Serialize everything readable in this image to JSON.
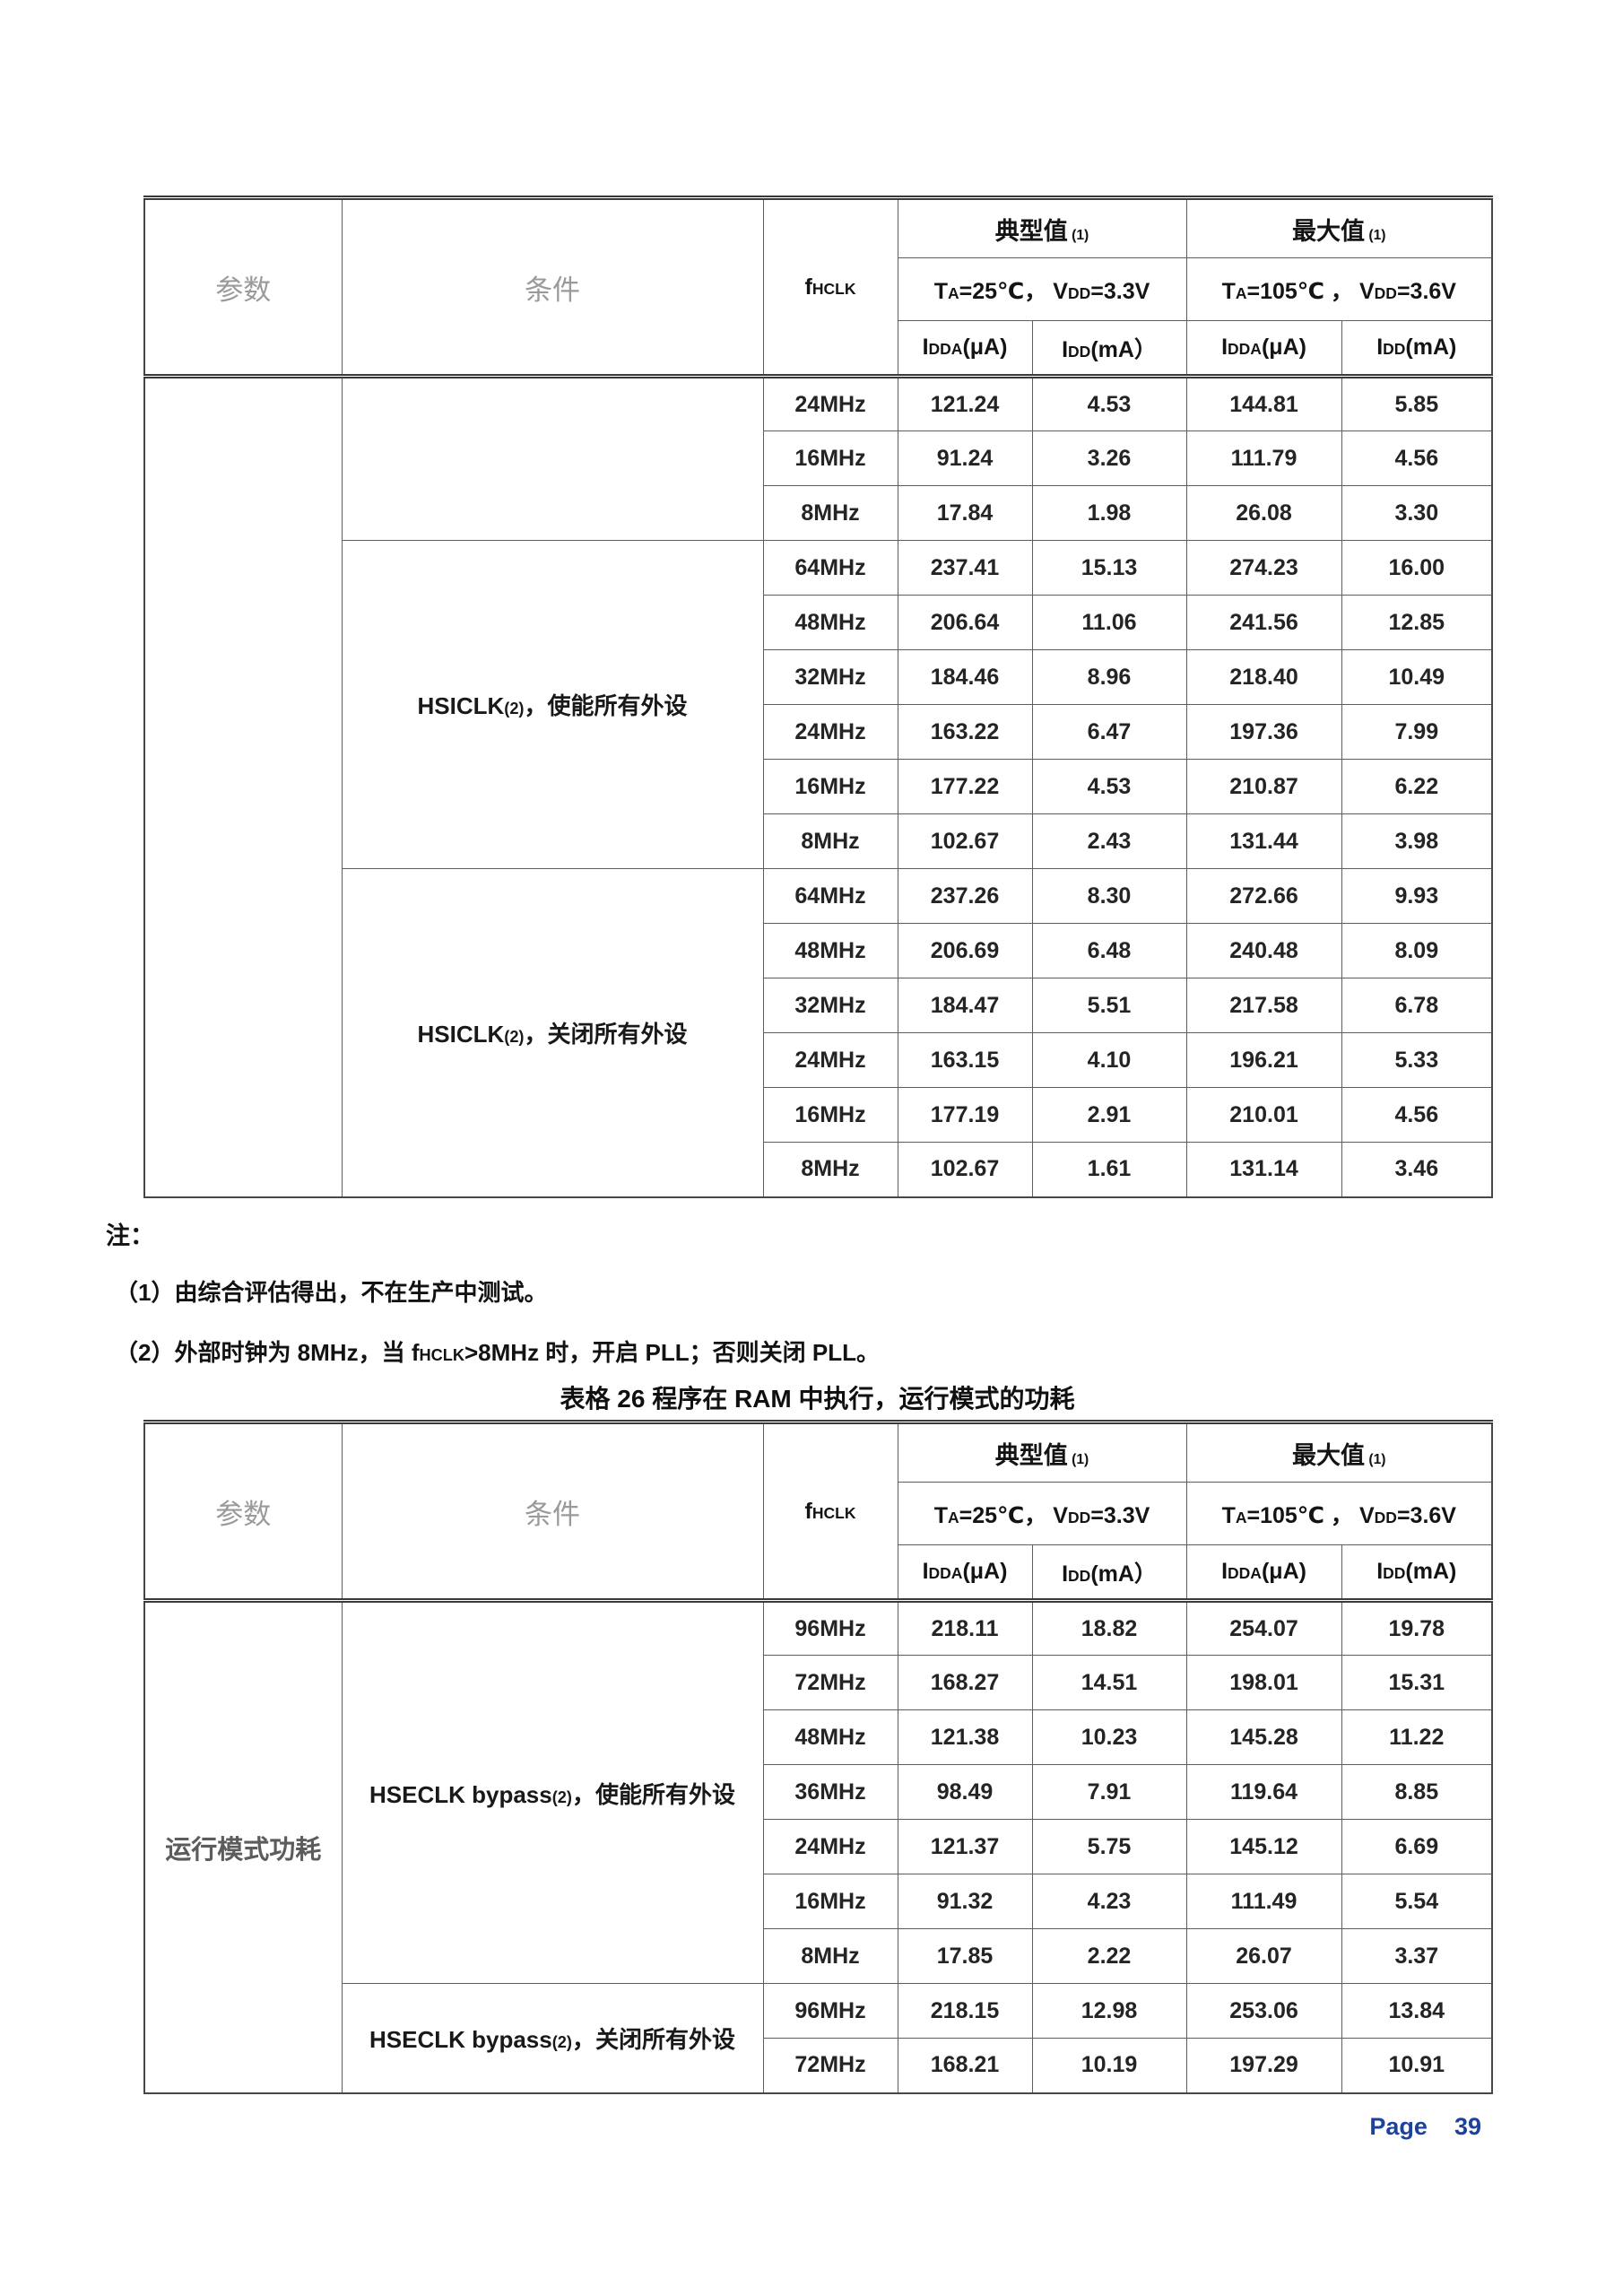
{
  "header": {
    "param_label": "参数",
    "condition_label": "条件",
    "fhclk": [
      {
        "t": "f"
      },
      {
        "t": "HCLK",
        "small": true
      }
    ],
    "typical_title": [
      {
        "t": "典型值"
      },
      {
        "t": " (1)",
        "small": true
      }
    ],
    "max_title": [
      {
        "t": "最大值"
      },
      {
        "t": " (1)",
        "small": true
      }
    ],
    "typical_condition": [
      {
        "t": "T"
      },
      {
        "t": "A",
        "small": true
      },
      {
        "t": "=25℃， "
      },
      {
        "t": "V"
      },
      {
        "t": "DD",
        "small": true
      },
      {
        "t": "=3.3V"
      }
    ],
    "max_condition": [
      {
        "t": "T"
      },
      {
        "t": "A",
        "small": true
      },
      {
        "t": "=105℃ ， "
      },
      {
        "t": "V"
      },
      {
        "t": "DD",
        "small": true
      },
      {
        "t": "=3.6V"
      }
    ],
    "unit_headers": [
      [
        {
          "t": "I"
        },
        {
          "t": "DDA",
          "small": true
        },
        {
          "t": "(μA)"
        }
      ],
      [
        {
          "t": "I"
        },
        {
          "t": "DD",
          "small": true
        },
        {
          "t": "(mA）"
        }
      ],
      [
        {
          "t": "I"
        },
        {
          "t": "DDA",
          "small": true
        },
        {
          "t": "(μA)"
        }
      ],
      [
        {
          "t": "I"
        },
        {
          "t": "DD",
          "small": true
        },
        {
          "t": "(mA)"
        }
      ]
    ]
  },
  "tables": [
    {
      "name": "run-mode-power-table-flash",
      "param": "",
      "sections": [
        {
          "condition": "",
          "rows": [
            [
              "24MHz",
              "121.24",
              "4.53",
              "144.81",
              "5.85"
            ],
            [
              "16MHz",
              "91.24",
              "3.26",
              "111.79",
              "4.56"
            ],
            [
              "8MHz",
              "17.84",
              "1.98",
              "26.08",
              "3.30"
            ]
          ]
        },
        {
          "condition": [
            {
              "t": "HSICLK"
            },
            {
              "t": "(2)",
              "small": true
            },
            {
              "t": "，使能所有外设"
            }
          ],
          "rows": [
            [
              "64MHz",
              "237.41",
              "15.13",
              "274.23",
              "16.00"
            ],
            [
              "48MHz",
              "206.64",
              "11.06",
              "241.56",
              "12.85"
            ],
            [
              "32MHz",
              "184.46",
              "8.96",
              "218.40",
              "10.49"
            ],
            [
              "24MHz",
              "163.22",
              "6.47",
              "197.36",
              "7.99"
            ],
            [
              "16MHz",
              "177.22",
              "4.53",
              "210.87",
              "6.22"
            ],
            [
              "8MHz",
              "102.67",
              "2.43",
              "131.44",
              "3.98"
            ]
          ]
        },
        {
          "condition": [
            {
              "t": "HSICLK"
            },
            {
              "t": "(2)",
              "small": true
            },
            {
              "t": "，关闭所有外设"
            }
          ],
          "rows": [
            [
              "64MHz",
              "237.26",
              "8.30",
              "272.66",
              "9.93"
            ],
            [
              "48MHz",
              "206.69",
              "6.48",
              "240.48",
              "8.09"
            ],
            [
              "32MHz",
              "184.47",
              "5.51",
              "217.58",
              "6.78"
            ],
            [
              "24MHz",
              "163.15",
              "4.10",
              "196.21",
              "5.33"
            ],
            [
              "16MHz",
              "177.19",
              "2.91",
              "210.01",
              "4.56"
            ],
            [
              "8MHz",
              "102.67",
              "1.61",
              "131.14",
              "3.46"
            ]
          ]
        }
      ]
    },
    {
      "name": "run-mode-power-table-ram",
      "param": "运行模式功耗",
      "sections": [
        {
          "condition": [
            {
              "t": "HSECLK bypass"
            },
            {
              "t": "(2)",
              "small": true
            },
            {
              "t": "，使能所有外设"
            }
          ],
          "rows": [
            [
              "96MHz",
              "218.11",
              "18.82",
              "254.07",
              "19.78"
            ],
            [
              "72MHz",
              "168.27",
              "14.51",
              "198.01",
              "15.31"
            ],
            [
              "48MHz",
              "121.38",
              "10.23",
              "145.28",
              "11.22"
            ],
            [
              "36MHz",
              "98.49",
              "7.91",
              "119.64",
              "8.85"
            ],
            [
              "24MHz",
              "121.37",
              "5.75",
              "145.12",
              "6.69"
            ],
            [
              "16MHz",
              "91.32",
              "4.23",
              "111.49",
              "5.54"
            ],
            [
              "8MHz",
              "17.85",
              "2.22",
              "26.07",
              "3.37"
            ]
          ]
        },
        {
          "condition": [
            {
              "t": "HSECLK bypass"
            },
            {
              "t": "(2)",
              "small": true
            },
            {
              "t": "，关闭所有外设"
            }
          ],
          "rows": [
            [
              "96MHz",
              "218.15",
              "12.98",
              "253.06",
              "13.84"
            ],
            [
              "72MHz",
              "168.21",
              "10.19",
              "197.29",
              "10.91"
            ]
          ]
        }
      ]
    }
  ],
  "notes": {
    "label": "注：",
    "items": [
      "（1）由综合评估得出，不在生产中测试。",
      [
        {
          "t": "（2）外部时钟为 8MHz，当 "
        },
        {
          "t": "f"
        },
        {
          "t": "HCLK",
          "small": true
        },
        {
          "t": ">8MHz 时，开启 PLL；否则关闭 PLL。"
        }
      ]
    ]
  },
  "caption": "表格 26 程序在 RAM 中执行，运行模式的功耗",
  "footer": {
    "label": "Page",
    "number": "39"
  }
}
